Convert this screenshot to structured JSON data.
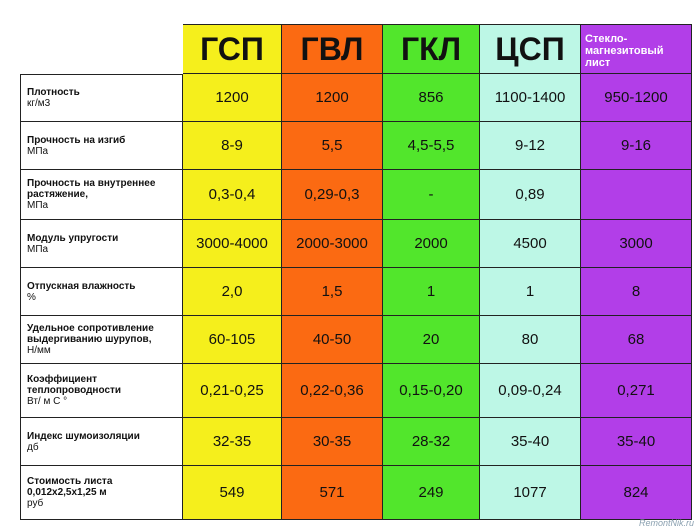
{
  "columns": [
    {
      "key": "gsp",
      "label": "ГСП"
    },
    {
      "key": "gvl",
      "label": "ГВЛ"
    },
    {
      "key": "gkl",
      "label": "ГКЛ"
    },
    {
      "key": "csp",
      "label": "ЦСП"
    },
    {
      "key": "smg",
      "label": "Стекло-магнезитовый лист"
    }
  ],
  "rows": [
    {
      "title": "Плотность",
      "unit": "кг/м3",
      "values": [
        "1200",
        "1200",
        "856",
        "1100-1400",
        "950-1200"
      ]
    },
    {
      "title": "Прочность на изгиб",
      "unit": "МПа",
      "values": [
        "8-9",
        "5,5",
        "4,5-5,5",
        "9-12",
        "9-16"
      ]
    },
    {
      "title": "Прочность на внутреннее растяжение,",
      "unit": "МПа",
      "values": [
        "0,3-0,4",
        "0,29-0,3",
        "-",
        "0,89",
        ""
      ]
    },
    {
      "title": "Модуль упругости",
      "unit": "МПа",
      "values": [
        "3000-4000",
        "2000-3000",
        "2000",
        "4500",
        "3000"
      ]
    },
    {
      "title": "Отпускная влажность",
      "unit": "%",
      "values": [
        "2,0",
        "1,5",
        "1",
        "1",
        "8"
      ]
    },
    {
      "title": "Удельное сопротивление выдергиванию шурупов,",
      "unit": "Н/мм",
      "values": [
        "60-105",
        "40-50",
        "20",
        "80",
        "68"
      ]
    },
    {
      "title": "Коэффициент теплопроводности",
      "unit": "Вт/ м С °",
      "values": [
        "0,21-0,25",
        "0,22-0,36",
        "0,15-0,20",
        "0,09-0,24",
        "0,271"
      ]
    },
    {
      "title": "Индекс шумоизоляции",
      "unit": "дб",
      "values": [
        "32-35",
        "30-35",
        "28-32",
        "35-40",
        "35-40"
      ]
    },
    {
      "title": "Стоимость листа 0,012х2,5х1,25 м",
      "unit": "руб",
      "values": [
        "549",
        "571",
        "249",
        "1077",
        "824"
      ]
    }
  ],
  "watermark": "RemontNik.ru"
}
